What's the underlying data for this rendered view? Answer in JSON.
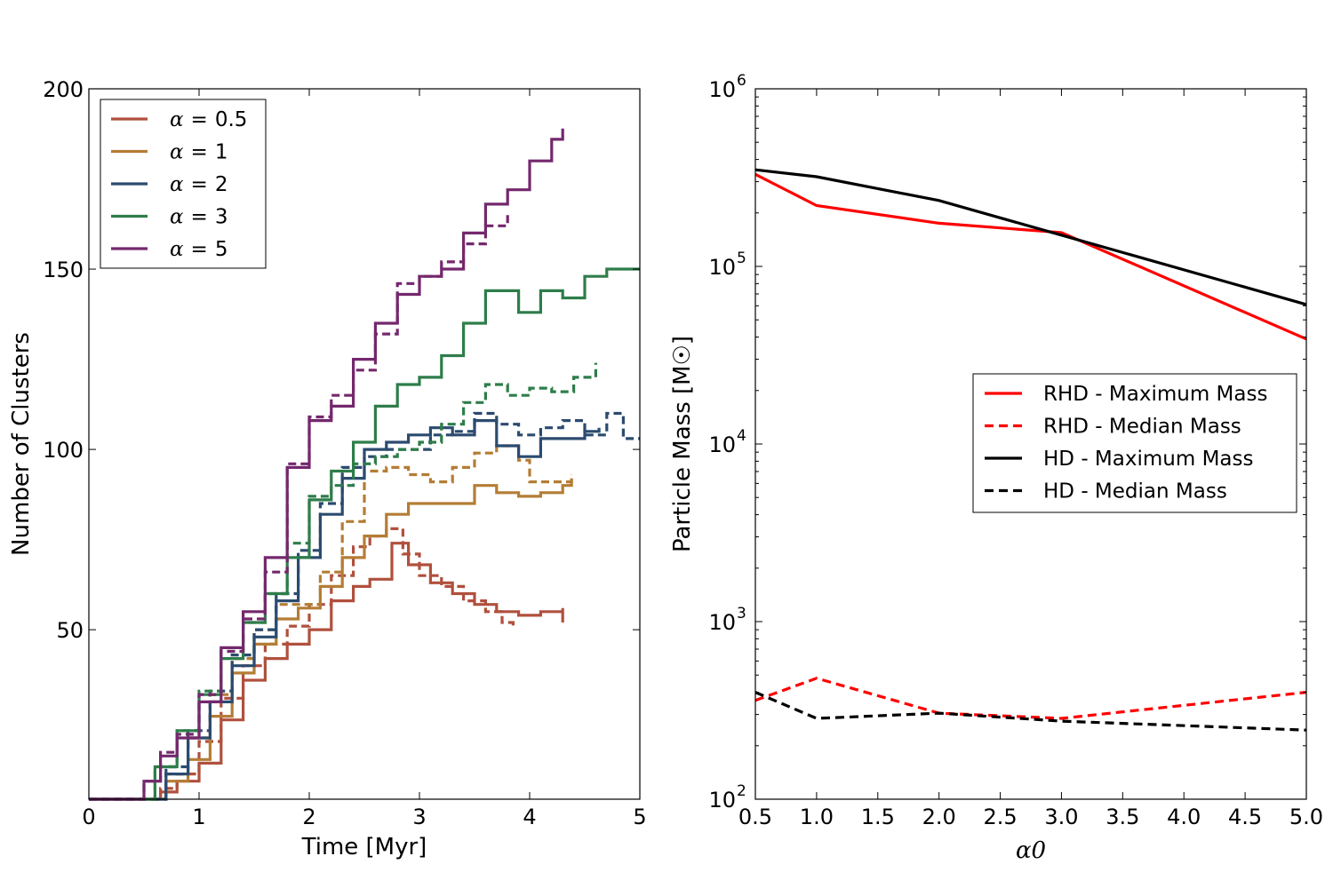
{
  "chart_data": [
    {
      "type": "line",
      "xlabel": "Time [Myr]",
      "ylabel": "Number of Clusters",
      "xlim": [
        0,
        5
      ],
      "ylim": [
        3,
        200
      ],
      "xticks": [
        0,
        1,
        2,
        3,
        4,
        5
      ],
      "xtick_labels": [
        "0",
        "1",
        "2",
        "3",
        "4",
        "5"
      ],
      "yticks": [
        50,
        100,
        150,
        200
      ],
      "ytick_labels": [
        "50",
        "100",
        "150",
        "200"
      ],
      "legend_position": "top-left",
      "series": [
        {
          "name": "α = 0.5",
          "alpha": "0.5",
          "color": "#b0503d",
          "solid": {
            "x": [
              0,
              0.55,
              0.65,
              0.8,
              1.0,
              1.2,
              1.4,
              1.6,
              1.8,
              2.0,
              2.2,
              2.4,
              2.55,
              2.75,
              2.9,
              3.1,
              3.3,
              3.5,
              3.7,
              3.9,
              4.1,
              4.3,
              4.3
            ],
            "y": [
              3,
              3,
              5,
              8,
              13,
              25,
              36,
              42,
              46,
              50,
              58,
              62,
              64,
              74,
              68,
              63,
              60,
              57,
              55,
              54,
              55,
              56,
              52
            ]
          },
          "dashed": {
            "x": [
              0,
              0.55,
              0.65,
              0.8,
              1.0,
              1.2,
              1.4,
              1.6,
              1.8,
              2.0,
              2.2,
              2.4,
              2.55,
              2.7,
              2.85,
              3.0,
              3.2,
              3.4,
              3.6,
              3.75,
              3.85
            ],
            "y": [
              3,
              3,
              6,
              10,
              19,
              31,
              40,
              46,
              51,
              57,
              65,
              73,
              76,
              78,
              71,
              65,
              62,
              58,
              55,
              52,
              50
            ]
          }
        },
        {
          "name": "α = 1",
          "alpha": "1",
          "color": "#b47d35",
          "solid": {
            "x": [
              0,
              0.55,
              0.7,
              0.9,
              1.1,
              1.3,
              1.5,
              1.7,
              1.9,
              2.1,
              2.3,
              2.5,
              2.7,
              2.9,
              3.1,
              3.3,
              3.5,
              3.7,
              3.9,
              4.1,
              4.3,
              4.38
            ],
            "y": [
              3,
              3,
              8,
              14,
              26,
              38,
              46,
              53,
              56,
              62,
              70,
              76,
              82,
              85,
              85,
              85,
              90,
              88,
              87,
              88,
              90,
              92
            ]
          },
          "dashed": {
            "x": [
              0,
              0.5,
              0.7,
              0.9,
              1.1,
              1.3,
              1.5,
              1.7,
              1.9,
              2.1,
              2.3,
              2.5,
              2.7,
              2.9,
              3.1,
              3.3,
              3.5,
              3.7,
              3.9,
              4.0,
              4.2,
              4.38
            ],
            "y": [
              3,
              3,
              10,
              20,
              32,
              42,
              50,
              57,
              57,
              66,
              80,
              94,
              95,
              93,
              91,
              95,
              99,
              101,
              97,
              91,
              91,
              93
            ]
          }
        },
        {
          "name": "α = 2",
          "alpha": "2",
          "color": "#2b4b6f",
          "solid": {
            "x": [
              0,
              0.5,
              0.7,
              0.9,
              1.1,
              1.3,
              1.5,
              1.7,
              1.9,
              2.1,
              2.3,
              2.5,
              2.7,
              2.9,
              3.1,
              3.3,
              3.5,
              3.7,
              3.9,
              4.1,
              4.3,
              4.5,
              4.63
            ],
            "y": [
              3,
              3,
              10,
              20,
              30,
              40,
              48,
              58,
              70,
              82,
              92,
              100,
              102,
              104,
              106,
              104,
              108,
              101,
              98,
              103,
              103,
              105,
              106
            ]
          },
          "dashed": {
            "x": [
              0,
              0.5,
              0.7,
              0.9,
              1.1,
              1.3,
              1.5,
              1.7,
              1.9,
              2.1,
              2.3,
              2.5,
              2.7,
              2.9,
              3.1,
              3.3,
              3.5,
              3.7,
              3.9,
              4.1,
              4.3,
              4.5,
              4.7,
              4.85,
              5.0
            ],
            "y": [
              3,
              3,
              12,
              22,
              33,
              43,
              50,
              60,
              72,
              85,
              95,
              98,
              100,
              100,
              104,
              105,
              110,
              107,
              104,
              106,
              108,
              104,
              110,
              103,
              103
            ]
          }
        },
        {
          "name": "α = 3",
          "alpha": "3",
          "color": "#2e7d4a",
          "solid": {
            "x": [
              0,
              0.45,
              0.6,
              0.8,
              1.0,
              1.2,
              1.4,
              1.6,
              1.8,
              2.0,
              2.2,
              2.4,
              2.6,
              2.8,
              3.0,
              3.2,
              3.4,
              3.6,
              3.8,
              3.9,
              4.1,
              4.3,
              4.5,
              4.7,
              4.85,
              5.0
            ],
            "y": [
              3,
              3,
              12,
              22,
              32,
              42,
              52,
              60,
              70,
              86,
              94,
              102,
              112,
              118,
              120,
              126,
              135,
              144,
              144,
              138,
              144,
              142,
              148,
              150,
              150,
              150
            ]
          },
          "dashed": {
            "x": [
              0,
              0.45,
              0.6,
              0.8,
              1.0,
              1.2,
              1.4,
              1.6,
              1.8,
              2.0,
              2.2,
              2.4,
              2.6,
              2.8,
              3.0,
              3.2,
              3.4,
              3.6,
              3.8,
              4.0,
              4.2,
              4.4,
              4.6
            ],
            "y": [
              3,
              3,
              12,
              22,
              33,
              44,
              52,
              60,
              74,
              87,
              90,
              96,
              98,
              100,
              102,
              107,
              113,
              118,
              115,
              117,
              116,
              120,
              124
            ]
          }
        },
        {
          "name": "α = 5",
          "alpha": "5",
          "color": "#74286d",
          "solid": {
            "x": [
              0,
              0.35,
              0.5,
              0.65,
              0.8,
              1.0,
              1.2,
              1.4,
              1.6,
              1.8,
              2.0,
              2.2,
              2.4,
              2.6,
              2.8,
              3.0,
              3.2,
              3.4,
              3.6,
              3.8,
              4.0,
              4.2,
              4.3
            ],
            "y": [
              3,
              3,
              8,
              15,
              20,
              30,
              45,
              55,
              70,
              95,
              108,
              112,
              125,
              135,
              143,
              148,
              150,
              160,
              168,
              172,
              180,
              186,
              189
            ]
          },
          "dashed": {
            "x": [
              0,
              0.35,
              0.5,
              0.65,
              0.8,
              1.0,
              1.2,
              1.4,
              1.6,
              1.8,
              2.0,
              2.2,
              2.4,
              2.6,
              2.8,
              3.0,
              3.2,
              3.4,
              3.6,
              3.8
            ],
            "y": [
              3,
              3,
              8,
              16,
              21,
              32,
              44,
              53,
              66,
              96,
              109,
              115,
              122,
              132,
              146,
              148,
              152,
              157,
              162,
              165
            ]
          }
        }
      ]
    },
    {
      "type": "line",
      "xlabel": "α0",
      "ylabel": "Particle Mass [M☉]",
      "yscale": "log",
      "xlim": [
        0.5,
        5.0
      ],
      "ylim": [
        100,
        1000000
      ],
      "xticks": [
        0.5,
        1.0,
        1.5,
        2.0,
        2.5,
        3.0,
        3.5,
        4.0,
        4.5,
        5.0
      ],
      "xtick_labels": [
        "0.5",
        "1.0",
        "1.5",
        "2.0",
        "2.5",
        "3.0",
        "3.5",
        "4.0",
        "4.5",
        "5.0"
      ],
      "ytick_labels": [
        "10",
        "10",
        "10",
        "10",
        "10"
      ],
      "ytick_exponents": [
        "2",
        "3",
        "4",
        "5",
        "6"
      ],
      "legend_position": "center-right",
      "series": [
        {
          "name": "RHD - Maximum Mass",
          "color": "#ff0000",
          "dash": false,
          "x": [
            0.5,
            1.0,
            2.0,
            3.0,
            5.0
          ],
          "y": [
            330000,
            220000,
            175000,
            155000,
            39000
          ]
        },
        {
          "name": "RHD - Median Mass",
          "color": "#ff0000",
          "dash": true,
          "x": [
            0.5,
            1.0,
            2.0,
            3.0,
            5.0
          ],
          "y": [
            360,
            480,
            305,
            285,
            400
          ]
        },
        {
          "name": "HD - Maximum Mass",
          "color": "#000000",
          "dash": false,
          "x": [
            0.5,
            1.0,
            2.0,
            3.0,
            5.0
          ],
          "y": [
            350000,
            320000,
            235000,
            150000,
            61000
          ]
        },
        {
          "name": "HD - Median Mass",
          "color": "#000000",
          "dash": true,
          "x": [
            0.5,
            1.0,
            2.0,
            3.0,
            5.0
          ],
          "y": [
            400,
            285,
            305,
            275,
            245
          ]
        }
      ]
    }
  ]
}
